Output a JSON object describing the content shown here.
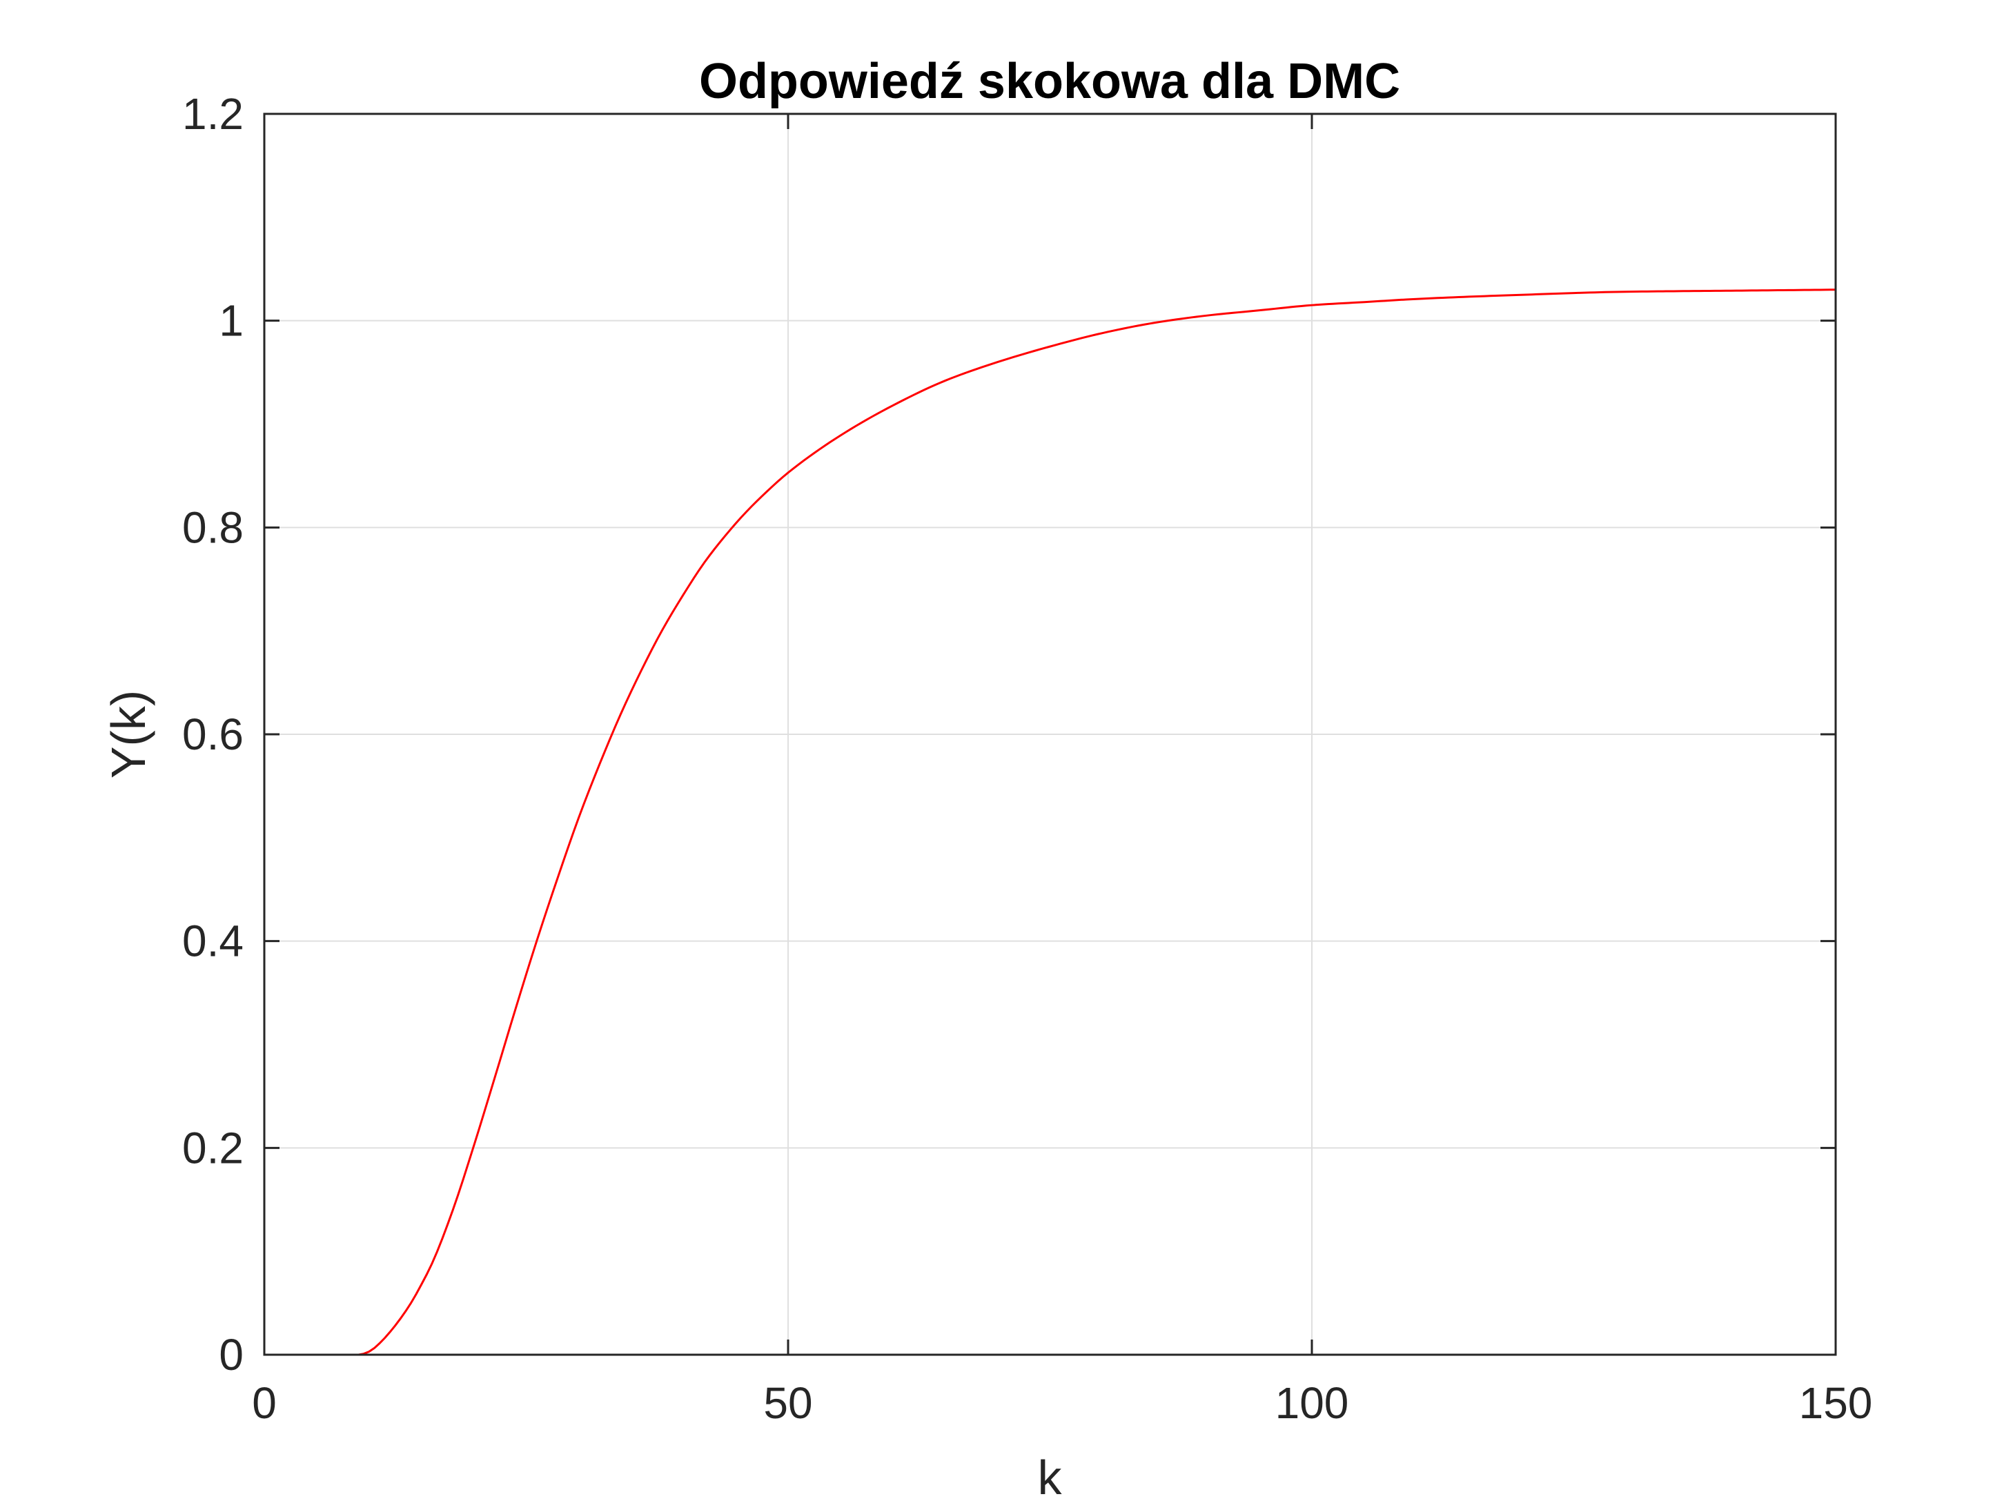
{
  "chart_data": {
    "type": "line",
    "title": "Odpowiedź skokowa dla DMC",
    "xlabel": "k",
    "ylabel": "Y(k)",
    "xlim": [
      0,
      150
    ],
    "ylim": [
      0,
      1.2
    ],
    "xticks": [
      0,
      50,
      100,
      150
    ],
    "xtick_labels": [
      "0",
      "50",
      "100",
      "150"
    ],
    "yticks": [
      0,
      0.2,
      0.4,
      0.6,
      0.8,
      1.0,
      1.2
    ],
    "ytick_labels": [
      "0",
      "0.2",
      "0.4",
      "0.6",
      "0.8",
      "1",
      "1.2"
    ],
    "grid": true,
    "series": [
      {
        "name": "Y(k)",
        "color": "#ff0000",
        "x": [
          0,
          5,
          9,
          10,
          11,
          12,
          13,
          14,
          15,
          16,
          18,
          20,
          22,
          24,
          26,
          28,
          30,
          32,
          34,
          36,
          38,
          40,
          42,
          44,
          46,
          48,
          50,
          55,
          60,
          65,
          70,
          75,
          80,
          85,
          90,
          95,
          100,
          105,
          110,
          120,
          130,
          140,
          150
        ],
        "values": [
          0,
          0,
          0,
          0.003,
          0.011,
          0.022,
          0.035,
          0.05,
          0.068,
          0.088,
          0.14,
          0.202,
          0.268,
          0.335,
          0.4,
          0.461,
          0.519,
          0.571,
          0.619,
          0.662,
          0.701,
          0.735,
          0.766,
          0.792,
          0.815,
          0.835,
          0.853,
          0.889,
          0.918,
          0.942,
          0.96,
          0.975,
          0.988,
          0.998,
          1.005,
          1.01,
          1.015,
          1.018,
          1.021,
          1.025,
          1.028,
          1.029,
          1.03
        ]
      }
    ]
  }
}
